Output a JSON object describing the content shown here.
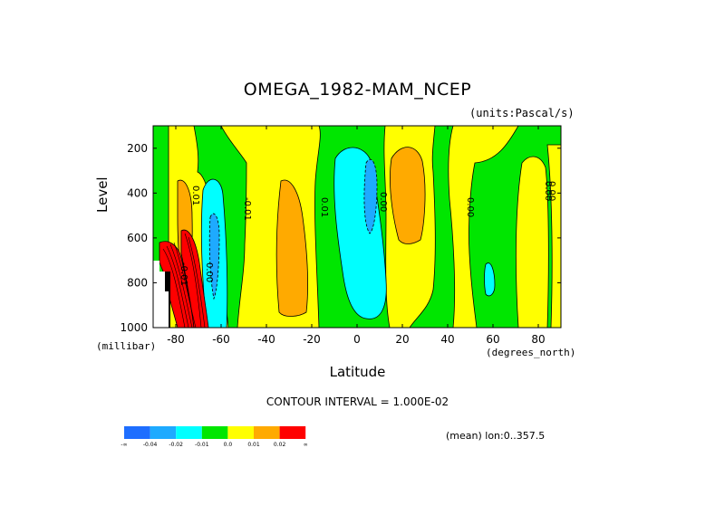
{
  "chart_data": {
    "type": "contour",
    "title": "OMEGA_1982-MAM_NCEP",
    "units_label": "(units:Pascal/s)",
    "xlabel": "Latitude",
    "x_unit_label": "(degrees_north)",
    "ylabel": "Level",
    "y_unit_label": "(millibar)",
    "xlim": [
      -90,
      90
    ],
    "ylim": [
      1000,
      100
    ],
    "y_inverted": true,
    "x_ticks": [
      "-80",
      "-60",
      "-40",
      "-20",
      "0",
      "20",
      "40",
      "60",
      "80"
    ],
    "y_ticks": [
      "200",
      "400",
      "600",
      "800",
      "1000"
    ],
    "contour_interval_text": "CONTOUR INTERVAL = 1.000E-02",
    "footer_text": "(mean) lon:0..357.5",
    "contour_labels": [
      "0.01",
      "-0.01",
      "0.00",
      "-0.01",
      "0.01",
      "0.00",
      "0.00",
      "0.00",
      "0.00",
      "0.01"
    ],
    "bands": [
      {
        "lat": [
          -90,
          -80
        ],
        "p": [
          100,
          600
        ],
        "value": 0.005,
        "label": "0.0 to 0.01"
      },
      {
        "lat": [
          -80,
          -78
        ],
        "p": [
          650,
          1000
        ],
        "value": 0.025,
        "label": "> 0.02"
      },
      {
        "lat": [
          -76,
          -72
        ],
        "p": [
          330,
          720
        ],
        "value": 0.015,
        "label": "0.01 to 0.02"
      },
      {
        "lat": [
          -70,
          -64
        ],
        "p": [
          330,
          1000
        ],
        "value": -0.015,
        "label": "-0.02 to -0.01"
      },
      {
        "lat": [
          -42,
          -28
        ],
        "p": [
          360,
          930
        ],
        "value": 0.015,
        "label": "0.01 to 0.02"
      },
      {
        "lat": [
          -8,
          10
        ],
        "p": [
          180,
          960
        ],
        "value": -0.015,
        "label": "-0.02 to -0.01"
      },
      {
        "lat": [
          13,
          26
        ],
        "p": [
          190,
          990
        ],
        "value": 0.015,
        "label": "0.01 to 0.02"
      }
    ],
    "colorbar": {
      "colors": [
        "#1e6eff",
        "#1eaaff",
        "#00ffff",
        "#00e600",
        "#ffff00",
        "#ffaa00",
        "#ff0000"
      ],
      "labels": [
        "-∞",
        "-0.04",
        "-0.02",
        "-0.01",
        "0.0",
        "0.01",
        "0.02",
        "∞"
      ]
    }
  }
}
